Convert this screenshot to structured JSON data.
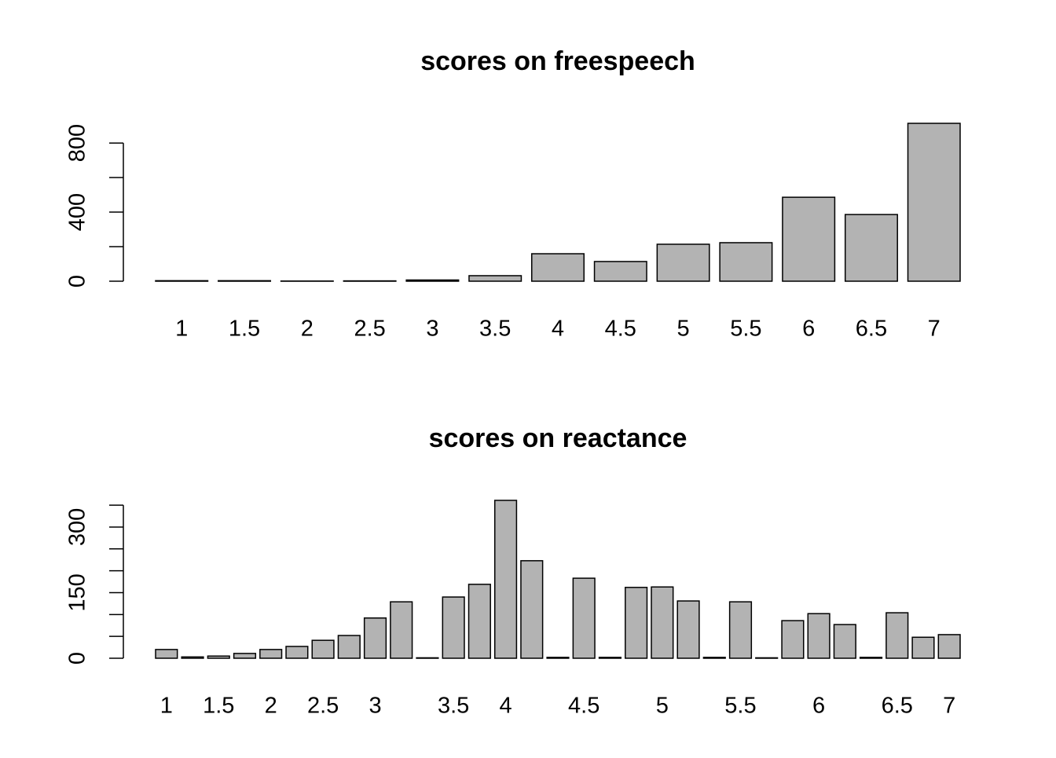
{
  "chart_data": [
    {
      "type": "bar",
      "title": "scores on freespeech",
      "categories": [
        "1",
        "1.5",
        "2",
        "2.5",
        "3",
        "3.5",
        "4",
        "4.5",
        "5",
        "5.5",
        "6",
        "6.5",
        "7"
      ],
      "values": [
        3,
        3,
        1,
        2,
        7,
        32,
        159,
        114,
        214,
        223,
        486,
        386,
        914
      ],
      "color": "#b3b3b3",
      "ylim": [
        0,
        914
      ],
      "yticks": [
        0,
        400,
        800
      ],
      "yminor_ticks": [
        200,
        600
      ]
    },
    {
      "type": "bar",
      "title": "scores on reactance",
      "categories": [
        "1",
        null,
        "1.5",
        null,
        "2",
        null,
        "2.5",
        null,
        "3",
        null,
        null,
        "3.5",
        null,
        "4",
        null,
        null,
        "4.5",
        null,
        null,
        "5",
        null,
        null,
        "5.5",
        null,
        null,
        "6",
        null,
        null,
        "6.5",
        null,
        "7"
      ],
      "values": [
        20,
        3,
        5,
        11,
        20,
        27,
        41,
        52,
        92,
        129,
        1,
        140,
        169,
        361,
        223,
        2,
        183,
        2,
        162,
        163,
        131,
        2,
        129,
        1,
        86,
        102,
        77,
        2,
        104,
        48,
        54
      ],
      "color": "#b3b3b3",
      "ylim": [
        0,
        361
      ],
      "yticks": [
        0,
        150,
        300
      ],
      "yminor_ticks": [
        50,
        100,
        200,
        250,
        350
      ]
    }
  ]
}
